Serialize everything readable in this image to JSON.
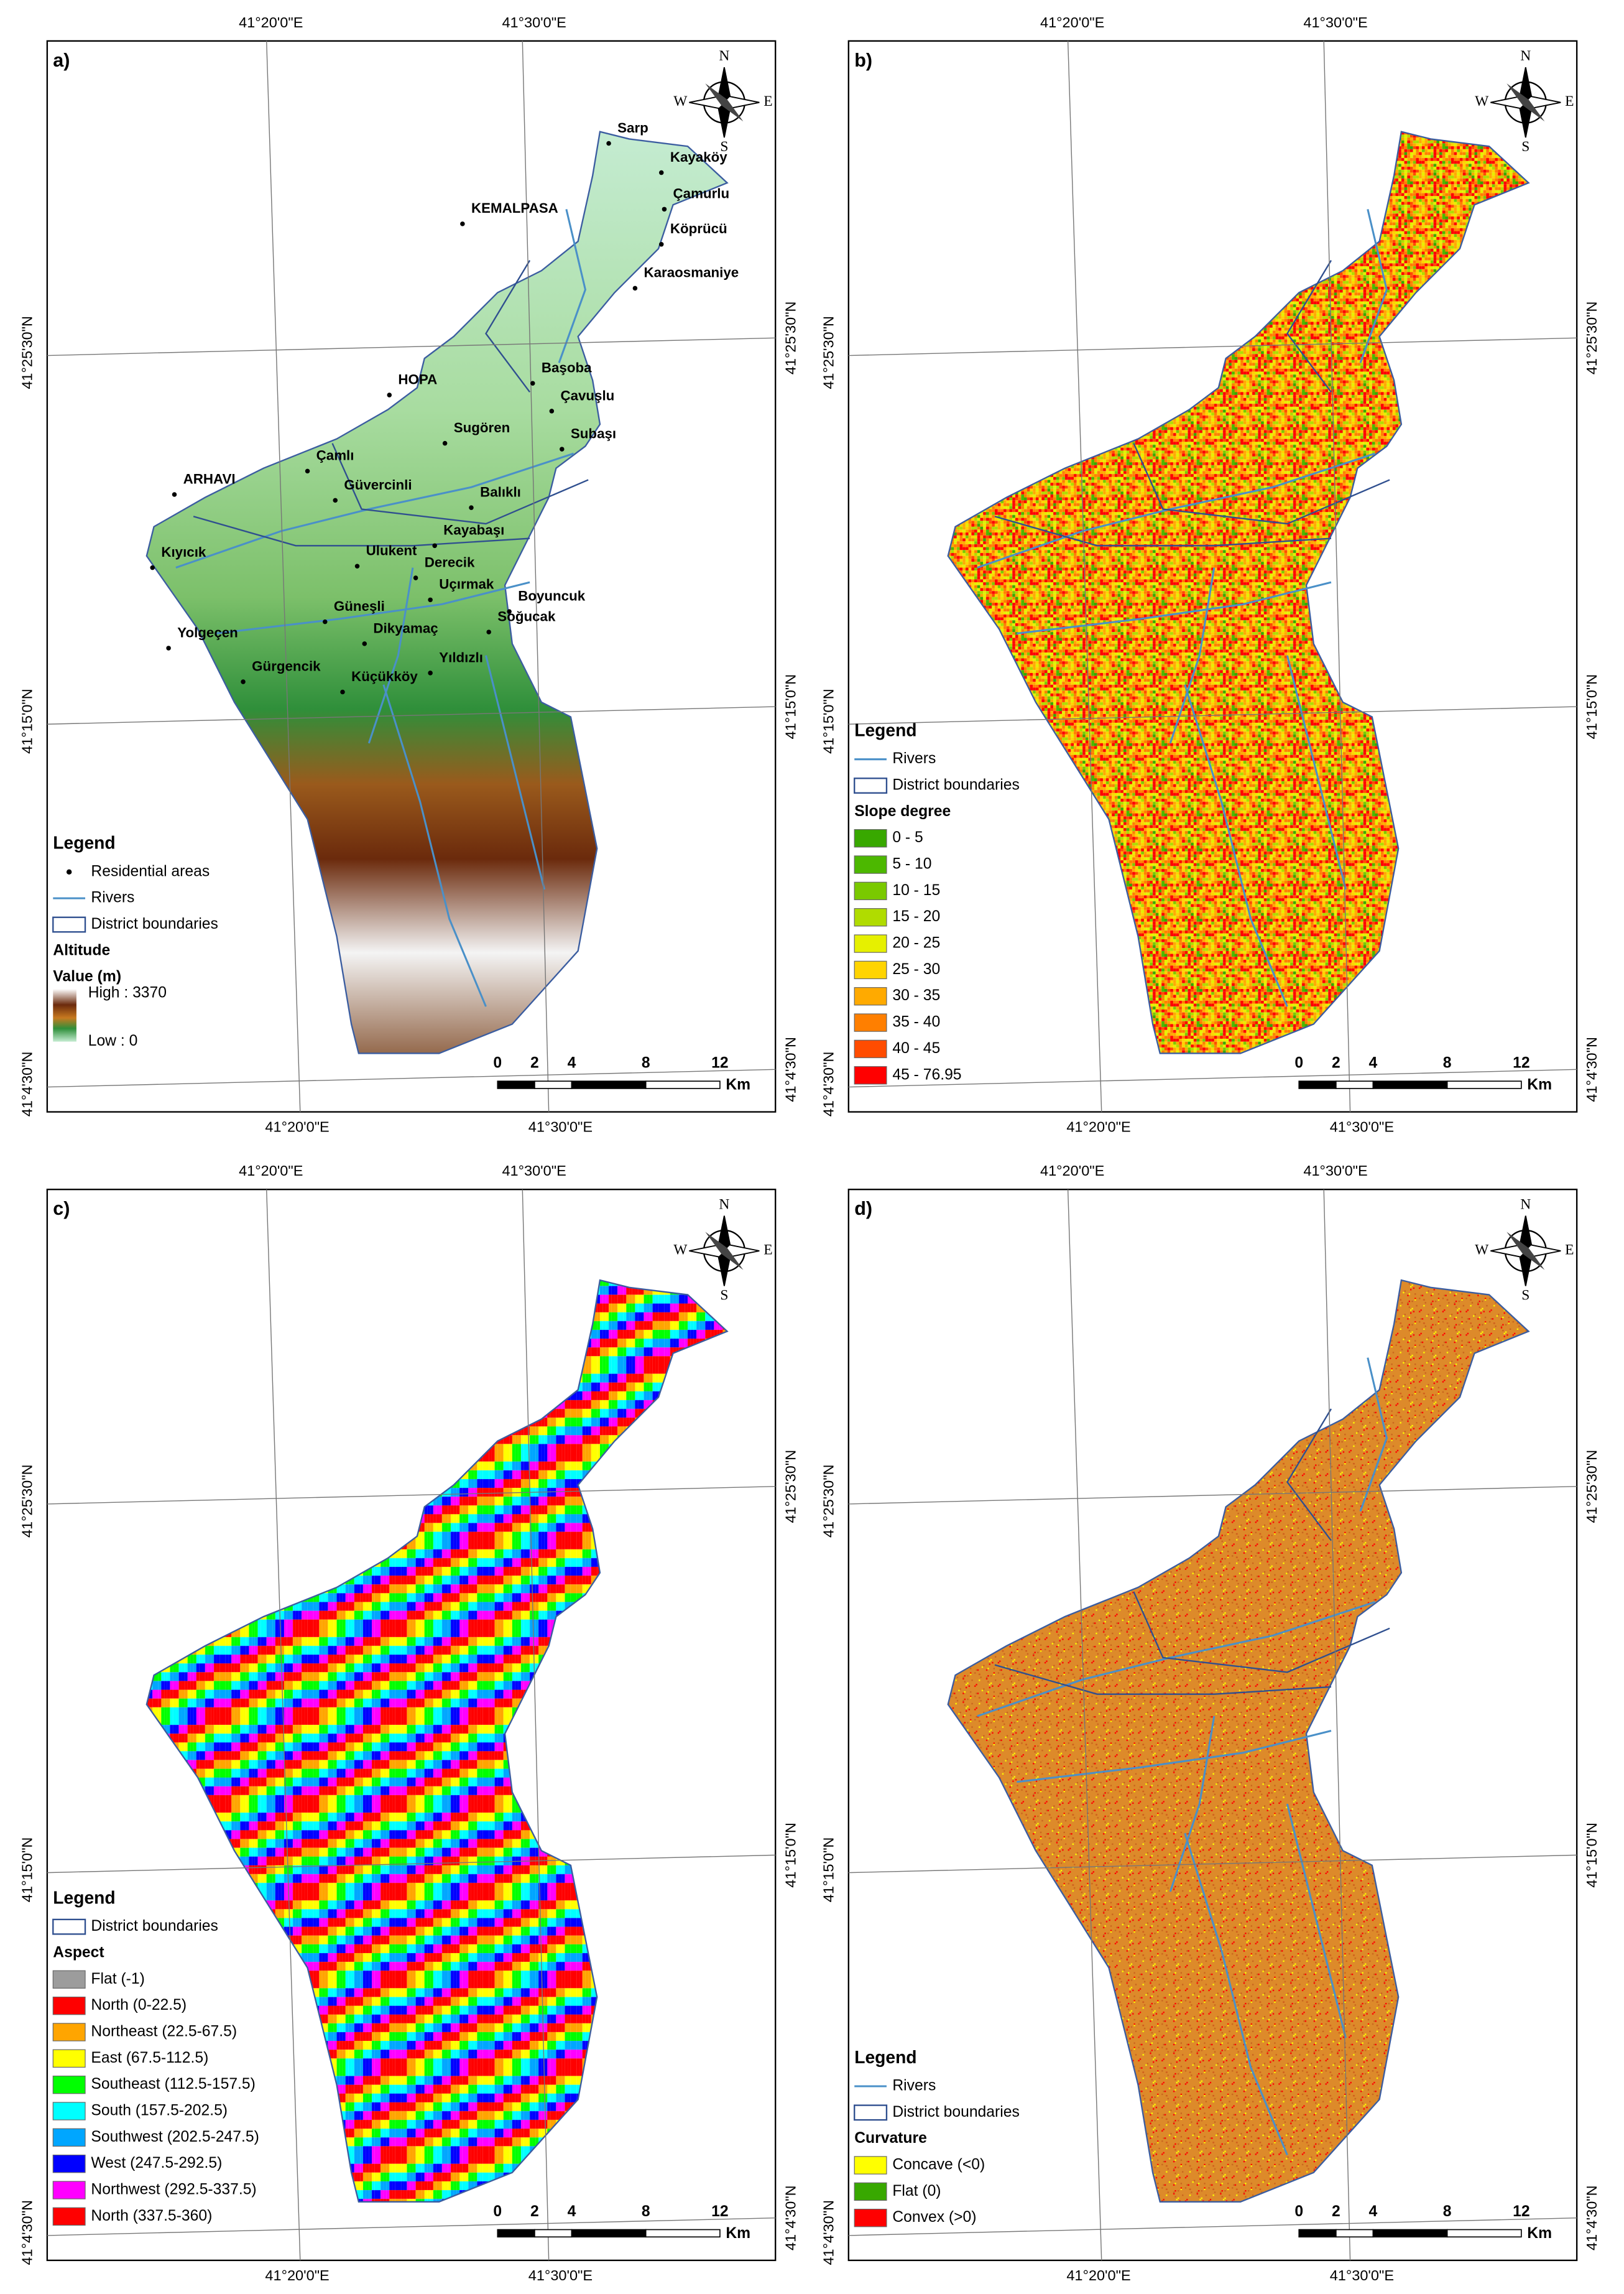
{
  "graticule": {
    "lon": [
      "41°20'0\"E",
      "41°30'0\"E"
    ],
    "lat": [
      "41°25'30\"N",
      "41°15'0\"N",
      "41°4'30\"N"
    ]
  },
  "compass": [
    "N",
    "W",
    "E",
    "S"
  ],
  "scale_bar": {
    "ticks": [
      0,
      2,
      4,
      8,
      12
    ],
    "unit": "Km"
  },
  "panels": [
    {
      "label": "a)",
      "legend_title": "Legend",
      "layers": [
        {
          "name": "Residential areas",
          "symbol": "dot"
        },
        {
          "name": "Rivers",
          "symbol": "line"
        },
        {
          "name": "District boundaries",
          "symbol": "box"
        }
      ],
      "classification": {
        "title": "Altitude",
        "subtitle": "Value (m)",
        "high": "High : 3370",
        "low": "Low : 0"
      },
      "places": [
        "Sarp",
        "Kayaköy",
        "Çamurlu",
        "Köprücü",
        "Karaosmaniye",
        "KEMALPASA",
        "Başoba",
        "HOPA",
        "Çavuşlu",
        "Sugören",
        "Subaşı",
        "Çamlı",
        "ARHAVI",
        "Güvercinli",
        "Balıklı",
        "Kayabaşı",
        "Kıyıcık",
        "Ulukent",
        "Derecik",
        "Uçırmak",
        "Boyuncuk",
        "Güneşli",
        "Soğucak",
        "Dikyamaç",
        "Yolgeçen",
        "Yıldızlı",
        "Gürgencik",
        "Küçükköy"
      ]
    },
    {
      "label": "b)",
      "legend_title": "Legend",
      "layers": [
        {
          "name": "Rivers",
          "symbol": "line"
        },
        {
          "name": "District boundaries",
          "symbol": "box"
        }
      ],
      "classification": {
        "title": "Slope degree",
        "classes": [
          {
            "name": "0 - 5",
            "color": "#38a800"
          },
          {
            "name": "5 - 10",
            "color": "#4cb800"
          },
          {
            "name": "10 - 15",
            "color": "#7ac900"
          },
          {
            "name": "15 - 20",
            "color": "#b0dc00"
          },
          {
            "name": "20 - 25",
            "color": "#e6f000"
          },
          {
            "name": "25 - 30",
            "color": "#ffd400"
          },
          {
            "name": "30 - 35",
            "color": "#ffaa00"
          },
          {
            "name": "35 - 40",
            "color": "#ff7f00"
          },
          {
            "name": "40 - 45",
            "color": "#ff4c00"
          },
          {
            "name": "45 - 76.95",
            "color": "#ff0000"
          }
        ]
      }
    },
    {
      "label": "c)",
      "legend_title": "Legend",
      "layers": [
        {
          "name": "District boundaries",
          "symbol": "box"
        }
      ],
      "classification": {
        "title": "Aspect",
        "classes": [
          {
            "name": "Flat (-1)",
            "color": "#9c9c9c"
          },
          {
            "name": "North (0-22.5)",
            "color": "#ff0000"
          },
          {
            "name": "Northeast (22.5-67.5)",
            "color": "#ffa500"
          },
          {
            "name": "East (67.5-112.5)",
            "color": "#ffff00"
          },
          {
            "name": "Southeast (112.5-157.5)",
            "color": "#00ff00"
          },
          {
            "name": "South (157.5-202.5)",
            "color": "#00ffff"
          },
          {
            "name": "Southwest (202.5-247.5)",
            "color": "#00a6ff"
          },
          {
            "name": "West (247.5-292.5)",
            "color": "#0000ff"
          },
          {
            "name": "Northwest (292.5-337.5)",
            "color": "#ff00ff"
          },
          {
            "name": "North (337.5-360)",
            "color": "#ff0000"
          }
        ]
      }
    },
    {
      "label": "d)",
      "legend_title": "Legend",
      "layers": [
        {
          "name": "Rivers",
          "symbol": "line"
        },
        {
          "name": "District boundaries",
          "symbol": "box"
        }
      ],
      "classification": {
        "title": "Curvature",
        "classes": [
          {
            "name": "Concave (<0)",
            "color": "#ffff00"
          },
          {
            "name": "Flat (0)",
            "color": "#38a800"
          },
          {
            "name": "Convex (>0)",
            "color": "#ff0000"
          }
        ]
      }
    }
  ]
}
